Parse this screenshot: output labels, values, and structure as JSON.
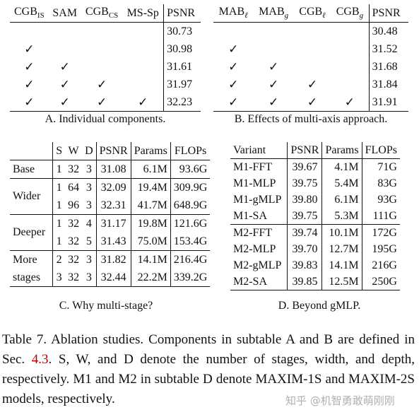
{
  "tableA": {
    "headers": {
      "cgb_is_main": "CGB",
      "cgb_is_sub": "IS",
      "sam": "SAM",
      "cgb_cs_main": "CGB",
      "cgb_cs_sub": "CS",
      "ms_sp": "MS-Sp",
      "psnr": "PSNR"
    },
    "rows": [
      {
        "c1": "",
        "c2": "",
        "c3": "",
        "c4": "",
        "psnr": "30.73"
      },
      {
        "c1": "✓",
        "c2": "",
        "c3": "",
        "c4": "",
        "psnr": "30.98"
      },
      {
        "c1": "✓",
        "c2": "✓",
        "c3": "",
        "c4": "",
        "psnr": "31.61"
      },
      {
        "c1": "✓",
        "c2": "✓",
        "c3": "✓",
        "c4": "",
        "psnr": "31.97"
      },
      {
        "c1": "✓",
        "c2": "✓",
        "c3": "✓",
        "c4": "✓",
        "psnr": "32.23"
      }
    ],
    "caption": "A. Individual components."
  },
  "tableB": {
    "headers": {
      "mab_l_main": "MAB",
      "mab_l_sub": "ℓ",
      "mab_g_main": "MAB",
      "mab_g_sub": "g",
      "cgb_l_main": "CGB",
      "cgb_l_sub": "ℓ",
      "cgb_g_main": "CGB",
      "cgb_g_sub": "g",
      "psnr": "PSNR"
    },
    "rows": [
      {
        "c1": "",
        "c2": "",
        "c3": "",
        "c4": "",
        "psnr": "30.48"
      },
      {
        "c1": "✓",
        "c2": "",
        "c3": "",
        "c4": "",
        "psnr": "31.52"
      },
      {
        "c1": "✓",
        "c2": "✓",
        "c3": "",
        "c4": "",
        "psnr": "31.68"
      },
      {
        "c1": "✓",
        "c2": "✓",
        "c3": "✓",
        "c4": "",
        "psnr": "31.84"
      },
      {
        "c1": "✓",
        "c2": "✓",
        "c3": "✓",
        "c4": "✓",
        "psnr": "31.91"
      }
    ],
    "caption": "B. Effects of multi-axis approach."
  },
  "tableC": {
    "headers": {
      "s": "S",
      "w": "W",
      "d": "D",
      "psnr": "PSNR",
      "params": "Params",
      "flops": "FLOPs"
    },
    "groups": {
      "base": "Base",
      "wider": "Wider",
      "deeper": "Deeper",
      "more_1": "More",
      "more_2": "stages"
    },
    "rows": [
      {
        "s": "1",
        "w": "32",
        "d": "3",
        "psnr": "31.08",
        "params": "6.1M",
        "flops": "93.6G"
      },
      {
        "s": "1",
        "w": "64",
        "d": "3",
        "psnr": "32.09",
        "params": "19.4M",
        "flops": "309.9G"
      },
      {
        "s": "1",
        "w": "96",
        "d": "3",
        "psnr": "32.31",
        "params": "41.7M",
        "flops": "648.9G"
      },
      {
        "s": "1",
        "w": "32",
        "d": "4",
        "psnr": "31.17",
        "params": "19.8M",
        "flops": "121.6G"
      },
      {
        "s": "1",
        "w": "32",
        "d": "5",
        "psnr": "31.43",
        "params": "75.0M",
        "flops": "153.4G"
      },
      {
        "s": "2",
        "w": "32",
        "d": "3",
        "psnr": "31.82",
        "params": "14.1M",
        "flops": "216.4G"
      },
      {
        "s": "3",
        "w": "32",
        "d": "3",
        "psnr": "32.44",
        "params": "22.2M",
        "flops": "339.2G"
      }
    ],
    "caption": "C. Why multi-stage?"
  },
  "tableD": {
    "headers": {
      "variant": "Variant",
      "psnr": "PSNR",
      "params": "Params",
      "flops": "FLOPs"
    },
    "rows": [
      {
        "variant": "M1-FFT",
        "psnr": "39.67",
        "params": "4.1M",
        "flops": "71G"
      },
      {
        "variant": "M1-MLP",
        "psnr": "39.75",
        "params": "5.4M",
        "flops": "83G"
      },
      {
        "variant": "M1-gMLP",
        "psnr": "39.80",
        "params": "6.1M",
        "flops": "93G"
      },
      {
        "variant": "M1-SA",
        "psnr": "39.75",
        "params": "5.3M",
        "flops": "111G"
      },
      {
        "variant": "M2-FFT",
        "psnr": "39.74",
        "params": "10.1M",
        "flops": "172G"
      },
      {
        "variant": "M2-MLP",
        "psnr": "39.70",
        "params": "12.7M",
        "flops": "195G"
      },
      {
        "variant": "M2-gMLP",
        "psnr": "39.83",
        "params": "14.1M",
        "flops": "216G"
      },
      {
        "variant": "M2-SA",
        "psnr": "39.85",
        "params": "12.5M",
        "flops": "250G"
      }
    ],
    "caption": "D. Beyond gMLP."
  },
  "main_caption": {
    "part1": "Table 7.  Ablation studies.  Components in subtable A and B are defined in Sec. ",
    "ref": "4.3",
    "part2": ".  S, W, and D denote the number of stages, width, and depth, respectively.  M1 and M2 in subtable D denote MAXIM-1S and MAXIM-2S models, respectively."
  },
  "watermark": "知乎 @机智勇敢萌刚刚"
}
